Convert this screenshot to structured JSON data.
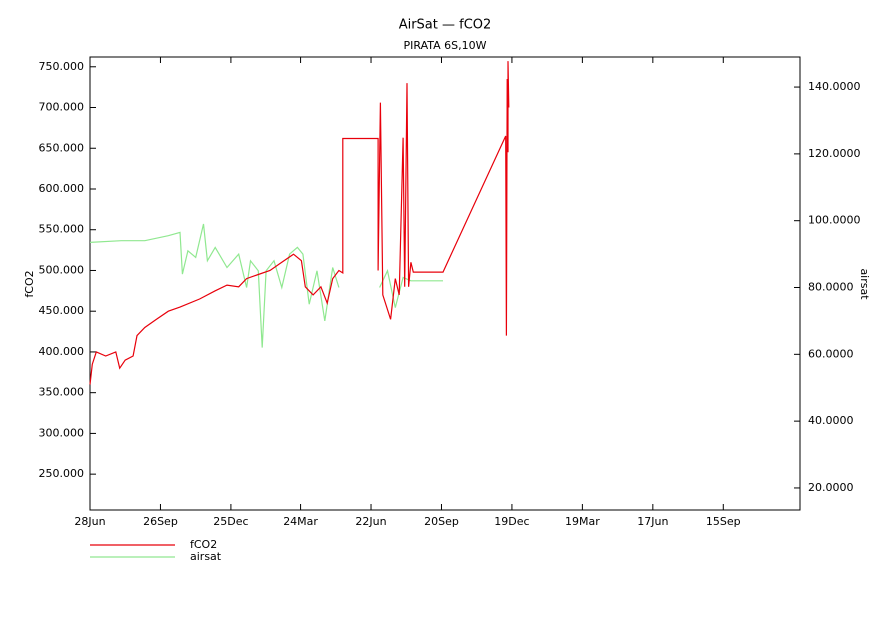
{
  "chart_data": {
    "type": "line",
    "title": "AirSat — fCO2",
    "subtitle": "PIRATA 6S,10W",
    "ylabel": "fCO2",
    "y2label": "airsat",
    "xlim": [
      0,
      907
    ],
    "xticks": [
      {
        "value": 0,
        "label": "28Jun"
      },
      {
        "value": 90,
        "label": "26Sep"
      },
      {
        "value": 180,
        "label": "25Dec"
      },
      {
        "value": 269,
        "label": "24Mar"
      },
      {
        "value": 359,
        "label": "22Jun"
      },
      {
        "value": 449,
        "label": "20Sep"
      },
      {
        "value": 539,
        "label": "19Dec"
      },
      {
        "value": 629,
        "label": "19Mar"
      },
      {
        "value": 719,
        "label": "17Jun"
      },
      {
        "value": 809,
        "label": "15Sep"
      }
    ],
    "ylim": [
      206,
      762
    ],
    "yticks": [
      {
        "value": 250,
        "label": "250.000"
      },
      {
        "value": 300,
        "label": "300.000"
      },
      {
        "value": 350,
        "label": "350.000"
      },
      {
        "value": 400,
        "label": "400.000"
      },
      {
        "value": 450,
        "label": "450.000"
      },
      {
        "value": 500,
        "label": "500.000"
      },
      {
        "value": 550,
        "label": "550.000"
      },
      {
        "value": 600,
        "label": "600.000"
      },
      {
        "value": 650,
        "label": "650.000"
      },
      {
        "value": 700,
        "label": "700.000"
      },
      {
        "value": 750,
        "label": "750.000"
      }
    ],
    "y2lim": [
      13.4,
      149
    ],
    "y2ticks": [
      {
        "value": 20,
        "label": "20.0000"
      },
      {
        "value": 40,
        "label": "40.0000"
      },
      {
        "value": 60,
        "label": "60.0000"
      },
      {
        "value": 80,
        "label": "80.0000"
      },
      {
        "value": 100,
        "label": "100.0000"
      },
      {
        "value": 120,
        "label": "120.0000"
      },
      {
        "value": 140,
        "label": "140.0000"
      }
    ],
    "series": [
      {
        "name": "fCO2",
        "color": "#e8000b",
        "x": [
          0,
          3,
          8,
          20,
          33,
          38,
          45,
          55,
          60,
          70,
          85,
          100,
          115,
          140,
          160,
          175,
          190,
          200,
          215,
          230,
          245,
          260,
          270,
          275,
          285,
          295,
          303,
          310,
          318,
          323,
          323,
          368,
          368,
          371,
          374,
          384,
          390,
          395,
          400,
          402,
          405,
          407,
          410,
          413,
          451,
          531,
          532,
          533,
          534,
          534,
          535
        ],
        "values": [
          360,
          385,
          400,
          395,
          400,
          380,
          390,
          395,
          420,
          430,
          440,
          450,
          455,
          465,
          475,
          482,
          480,
          490,
          495,
          500,
          510,
          520,
          512,
          480,
          470,
          480,
          460,
          490,
          500,
          497,
          662,
          662,
          500,
          706,
          470,
          440,
          490,
          470,
          663,
          480,
          730,
          480,
          510,
          498,
          498,
          665,
          420,
          735,
          645,
          757,
          700
        ]
      },
      {
        "name": "airsat",
        "color": "#90e890",
        "axis": "y2",
        "x": [
          0,
          40,
          70,
          100,
          115,
          118,
          125,
          135,
          145,
          150,
          160,
          175,
          190,
          200,
          205,
          215,
          220,
          225,
          235,
          245,
          255,
          265,
          272,
          280,
          290,
          300,
          310,
          318,
          320,
          370,
          380,
          390,
          400,
          410,
          451
        ],
        "values": [
          93.5,
          94,
          94,
          95.5,
          96.5,
          84,
          91,
          89,
          99,
          88,
          92,
          86,
          90,
          80,
          88,
          85,
          62,
          85,
          88,
          80,
          90,
          92,
          90,
          75,
          85,
          70,
          86,
          80,
          null,
          80,
          85,
          74,
          83,
          82,
          82
        ]
      }
    ]
  }
}
